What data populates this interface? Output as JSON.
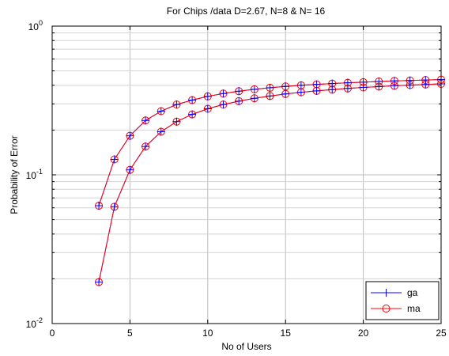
{
  "chart_data": {
    "type": "line",
    "title": "For Chips /data D=2.67, N=8 & N= 16",
    "xlabel": "No of Users",
    "ylabel": "Probability of Error",
    "xlim": [
      0,
      25
    ],
    "ylim": [
      0.01,
      1
    ],
    "yscale": "log",
    "grid": true,
    "legend_position": "bottom-right",
    "xticks": [
      0,
      5,
      10,
      15,
      20,
      25
    ],
    "yticks": [
      {
        "base": "10",
        "exp": "-2",
        "value": 0.01
      },
      {
        "base": "10",
        "exp": "-1",
        "value": 0.1
      },
      {
        "base": "10",
        "exp": "0",
        "value": 1
      }
    ],
    "x": [
      3,
      4,
      5,
      6,
      7,
      8,
      9,
      10,
      11,
      12,
      13,
      14,
      15,
      16,
      17,
      18,
      19,
      20,
      21,
      22,
      23,
      24,
      25
    ],
    "curves": [
      {
        "id": "N=8",
        "y": [
          0.062,
          0.127,
          0.183,
          0.232,
          0.268,
          0.297,
          0.318,
          0.337,
          0.352,
          0.365,
          0.376,
          0.385,
          0.393,
          0.4,
          0.406,
          0.411,
          0.416,
          0.42,
          0.424,
          0.428,
          0.431,
          0.434,
          0.437
        ]
      },
      {
        "id": "N=16",
        "y": [
          0.019,
          0.061,
          0.108,
          0.155,
          0.195,
          0.228,
          0.255,
          0.278,
          0.297,
          0.313,
          0.327,
          0.339,
          0.35,
          0.359,
          0.367,
          0.374,
          0.381,
          0.387,
          0.392,
          0.397,
          0.401,
          0.405,
          0.409
        ]
      }
    ],
    "series": [
      {
        "name": "ga",
        "color": "#0000ff",
        "marker": "plus"
      },
      {
        "name": "ma",
        "color": "#ff0000",
        "marker": "circle"
      }
    ]
  }
}
